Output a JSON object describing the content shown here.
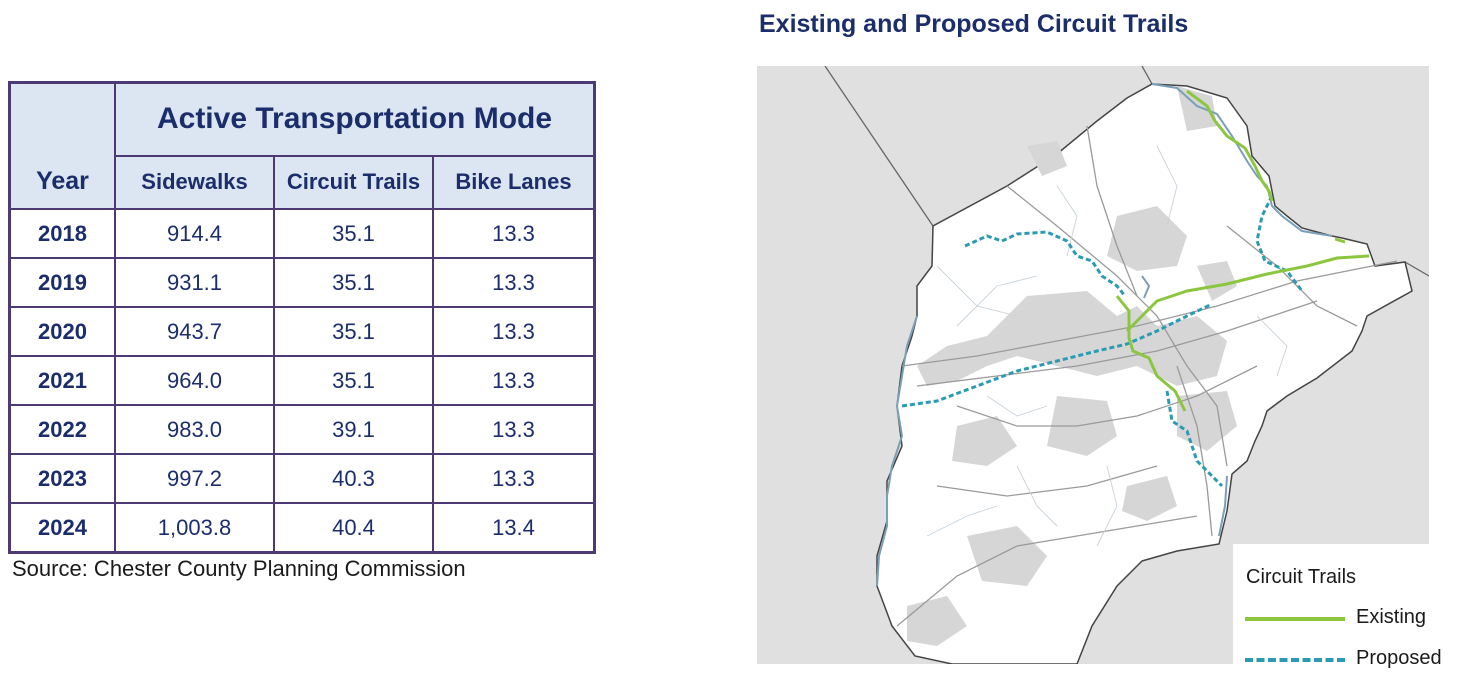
{
  "table": {
    "year_header": "Year",
    "group_header": "Active Transportation Mode",
    "columns": [
      "Sidewalks",
      "Circuit Trails",
      "Bike Lanes"
    ],
    "rows": [
      {
        "year": "2018",
        "sidewalks": "914.4",
        "circuit_trails": "35.1",
        "bike_lanes": "13.3"
      },
      {
        "year": "2019",
        "sidewalks": "931.1",
        "circuit_trails": "35.1",
        "bike_lanes": "13.3"
      },
      {
        "year": "2020",
        "sidewalks": "943.7",
        "circuit_trails": "35.1",
        "bike_lanes": "13.3"
      },
      {
        "year": "2021",
        "sidewalks": "964.0",
        "circuit_trails": "35.1",
        "bike_lanes": "13.3"
      },
      {
        "year": "2022",
        "sidewalks": "983.0",
        "circuit_trails": "39.1",
        "bike_lanes": "13.3"
      },
      {
        "year": "2023",
        "sidewalks": "997.2",
        "circuit_trails": "40.3",
        "bike_lanes": "13.3"
      },
      {
        "year": "2024",
        "sidewalks": "1,003.8",
        "circuit_trails": "40.4",
        "bike_lanes": "13.4"
      }
    ],
    "source": "Source: Chester County Planning Commission"
  },
  "map": {
    "title": "Existing and Proposed Circuit Trails",
    "legend": {
      "title": "Circuit Trails",
      "existing_label": "Existing",
      "proposed_label": "Proposed"
    },
    "colors": {
      "existing": "#8cc63f",
      "proposed": "#2a9bb0",
      "background": "#e0e0e0",
      "county": "#ffffff",
      "built_up": "#d6d6d6",
      "water": "#7a9fb8",
      "roads": "#9a9a9a"
    }
  }
}
